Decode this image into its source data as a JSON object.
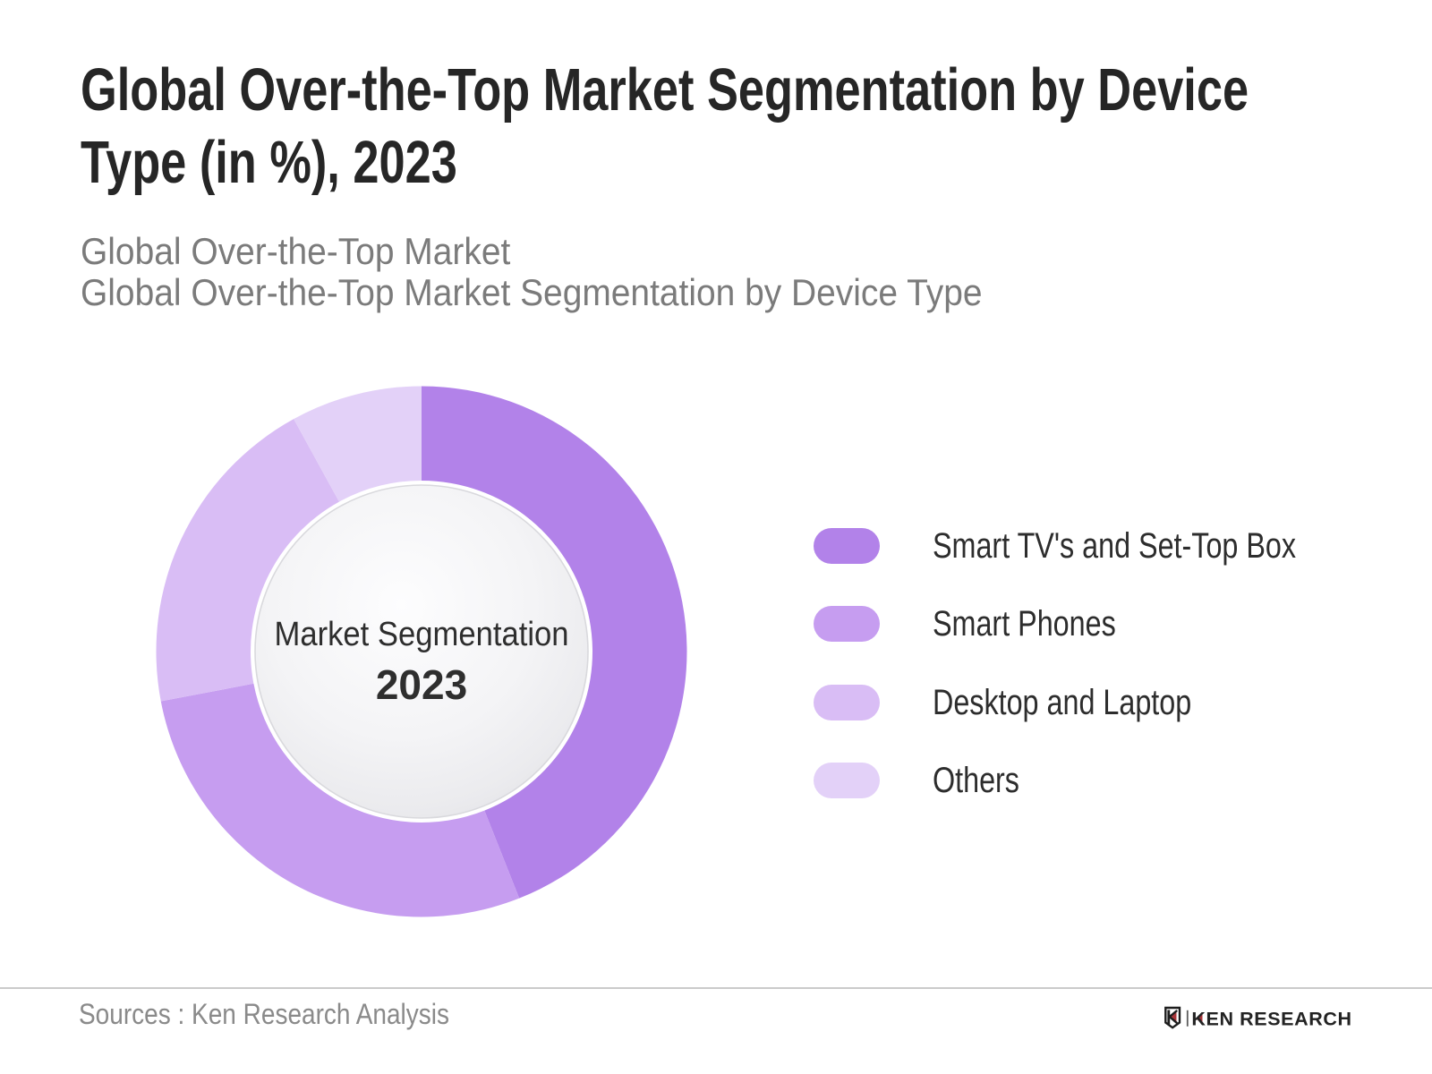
{
  "header": {
    "title_line1": "Global Over-the-Top Market Segmentation by Device",
    "title_line2": "Type (in %), 2023",
    "subtitle_line1": "Global Over-the-Top Market",
    "subtitle_line2": "Global Over-the-Top Market Segmentation by Device Type"
  },
  "chart_data": {
    "type": "pie",
    "variant": "donut",
    "title": "Global Over-the-Top Market Segmentation by Device Type (in %), 2023",
    "unit": "%",
    "categories": [
      "Smart TV's and Set-Top Box",
      "Smart Phones",
      "Desktop and Laptop",
      "Others"
    ],
    "values": [
      44,
      28,
      20,
      8
    ],
    "colors": [
      "#b282e9",
      "#c69df0",
      "#d9bdf5",
      "#e3d1f8"
    ],
    "start_angle_deg": 0,
    "direction": "clockwise",
    "legend_position": "right",
    "center_label_line1": "Market Segmentation",
    "center_label_line2": "2023"
  },
  "footer": {
    "source_text": "Sources : Ken Research Analysis",
    "logo_text": "KEN RESEARCH",
    "logo_accent_color": "#a93439",
    "logo_text_color": "#232323"
  }
}
